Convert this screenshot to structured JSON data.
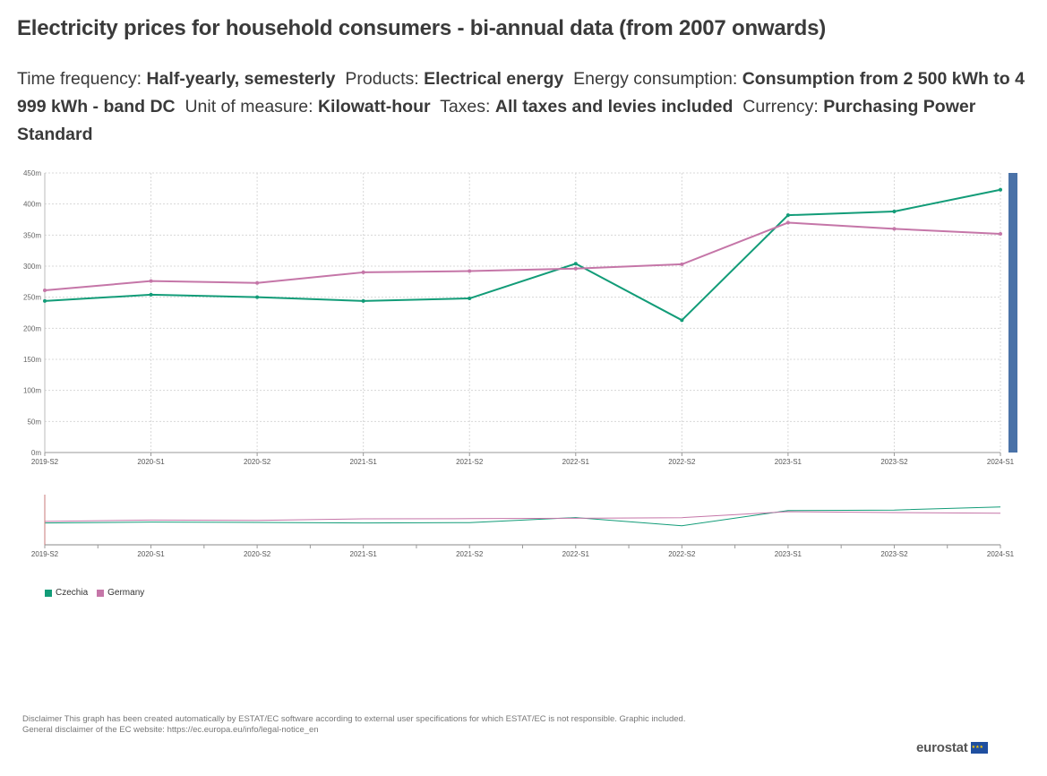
{
  "title": "Electricity prices for household consumers - bi-annual data (from 2007 onwards)",
  "subtitle": [
    {
      "key": "Time frequency: ",
      "value": "Half-yearly, semesterly"
    },
    {
      "key": "Products: ",
      "value": "Electrical energy"
    },
    {
      "key": "Energy consumption: ",
      "value": "Consumption from 2 500 kWh to 4 999 kWh - band DC"
    },
    {
      "key": "Unit of measure: ",
      "value": "Kilowatt-hour"
    },
    {
      "key": "Taxes: ",
      "value": "All taxes and levies included"
    },
    {
      "key": "Currency: ",
      "value": "Purchasing Power Standard"
    }
  ],
  "chart_data": {
    "type": "line",
    "title": "Electricity prices for household consumers - bi-annual data (from 2007 onwards)",
    "categories": [
      "2019-S2",
      "2020-S1",
      "2020-S2",
      "2021-S1",
      "2021-S2",
      "2022-S1",
      "2022-S2",
      "2023-S1",
      "2023-S2",
      "2024-S1"
    ],
    "series": [
      {
        "name": "Czechia",
        "color": "#129c78",
        "values": [
          244,
          254,
          250,
          244,
          248,
          304,
          213,
          382,
          388,
          423
        ]
      },
      {
        "name": "Germany",
        "color": "#c576a8",
        "values": [
          261,
          276,
          273,
          290,
          292,
          296,
          303,
          370,
          360,
          352
        ]
      }
    ],
    "ylim": [
      0,
      450
    ],
    "yticks": [
      0,
      50,
      100,
      150,
      200,
      250,
      300,
      350,
      400,
      450
    ],
    "ytick_labels": [
      "0m",
      "50m",
      "100m",
      "150m",
      "200m",
      "250m",
      "300m",
      "350m",
      "400m",
      "450m"
    ],
    "xlabel": "",
    "ylabel": "",
    "grid": true,
    "legend": "bottom-left"
  },
  "disclaimer": {
    "line1": "Disclaimer This graph has been created automatically by ESTAT/EC software according to external user specifications for which ESTAT/EC is not responsible. Graphic included.",
    "line2": "General disclaimer of the EC website: https://ec.europa.eu/info/legal-notice_en"
  },
  "logo": {
    "text": "eurostat",
    "icon": "eu-flag-icon"
  },
  "colors": {
    "scrollbar": "#4a72a8",
    "nav_handle": "#c87878"
  }
}
